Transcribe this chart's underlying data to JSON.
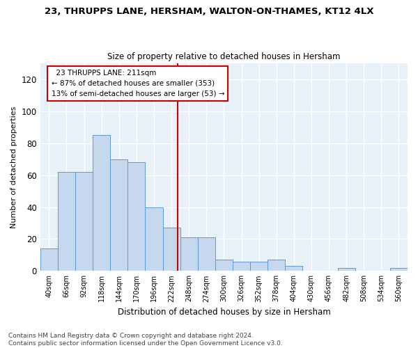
{
  "title_line1": "23, THRUPPS LANE, HERSHAM, WALTON-ON-THAMES, KT12 4LX",
  "title_line2": "Size of property relative to detached houses in Hersham",
  "xlabel": "Distribution of detached houses by size in Hersham",
  "ylabel": "Number of detached properties",
  "bar_labels": [
    "40sqm",
    "66sqm",
    "92sqm",
    "118sqm",
    "144sqm",
    "170sqm",
    "196sqm",
    "222sqm",
    "248sqm",
    "274sqm",
    "300sqm",
    "326sqm",
    "352sqm",
    "378sqm",
    "404sqm",
    "430sqm",
    "456sqm",
    "482sqm",
    "508sqm",
    "534sqm",
    "560sqm"
  ],
  "bar_values": [
    14,
    62,
    62,
    85,
    70,
    68,
    40,
    27,
    21,
    21,
    7,
    6,
    6,
    7,
    3,
    0,
    0,
    2,
    0,
    0,
    2
  ],
  "bar_color": "#c5d8ed",
  "bar_edge_color": "#5b9bd5",
  "property_label": "23 THRUPPS LANE: 211sqm",
  "pct_smaller": "87% of detached houses are smaller (353)",
  "pct_larger": "13% of semi-detached houses are larger (53)",
  "vline_color": "#cc0000",
  "vline_x": 7.35,
  "ylim": [
    0,
    130
  ],
  "yticks": [
    0,
    20,
    40,
    60,
    80,
    100,
    120
  ],
  "annotation_box_edge": "#cc0000",
  "footer": "Contains HM Land Registry data © Crown copyright and database right 2024.\nContains public sector information licensed under the Open Government Licence v3.0.",
  "plot_bg_color": "#e8f0f8",
  "fig_bg_color": "#ffffff",
  "grid_color": "#ffffff"
}
